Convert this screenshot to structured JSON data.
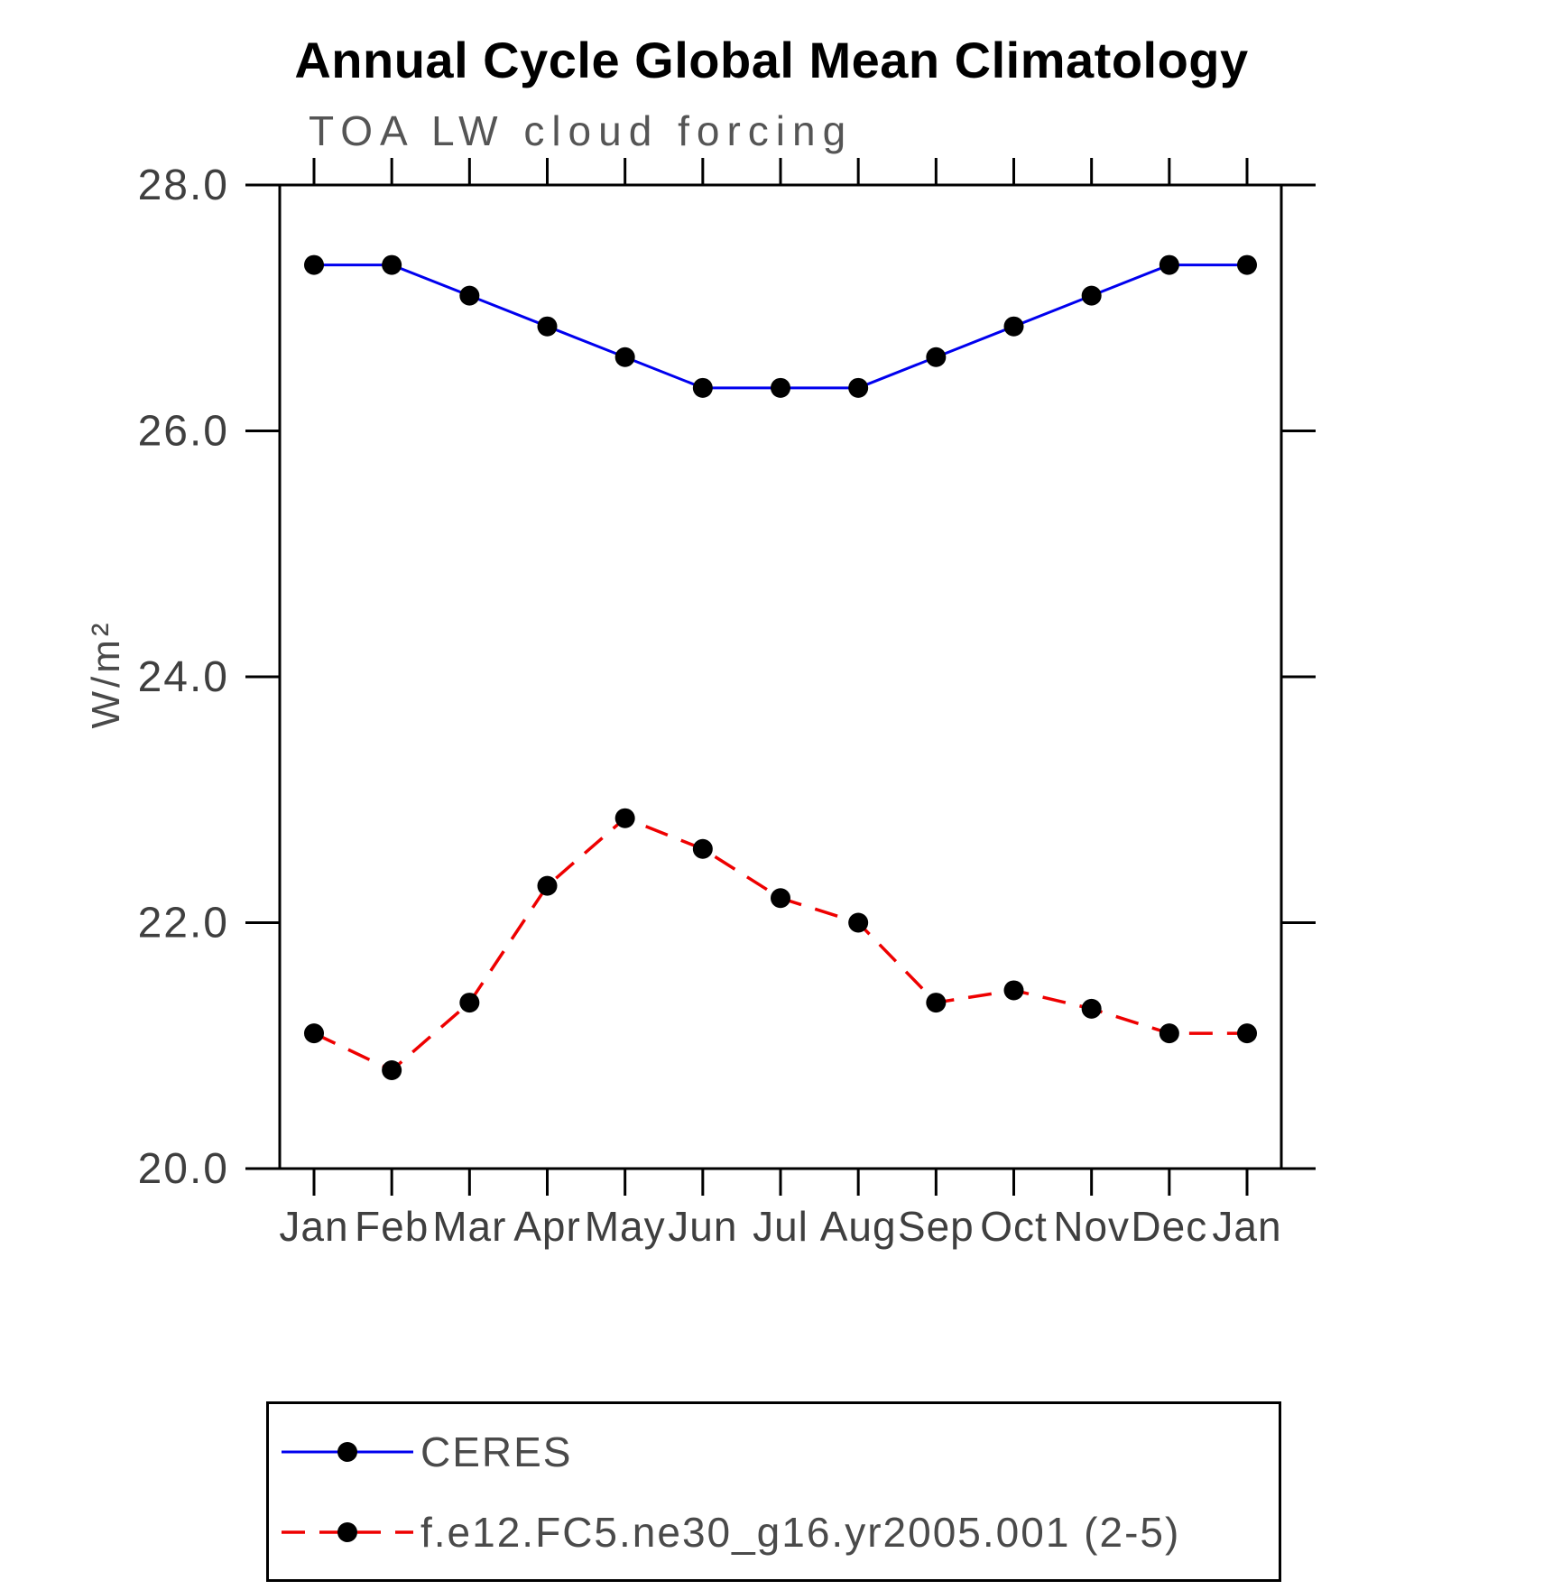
{
  "title": "Annual Cycle Global Mean Climatology",
  "chart_data": {
    "type": "line",
    "title": "Annual Cycle Global Mean Climatology",
    "subtitle": "TOA LW cloud forcing",
    "ylabel": "W/m²",
    "xlabel": "",
    "categories": [
      "Jan",
      "Feb",
      "Mar",
      "Apr",
      "May",
      "Jun",
      "Jul",
      "Aug",
      "Sep",
      "Oct",
      "Nov",
      "Dec",
      "Jan"
    ],
    "ylim": [
      20.0,
      28.0
    ],
    "yticks": [
      20.0,
      22.0,
      24.0,
      26.0,
      28.0
    ],
    "ytick_labels": [
      "20.0",
      "22.0",
      "24.0",
      "26.0",
      "28.0"
    ],
    "grid": false,
    "legend_position": "bottom",
    "marker_color": "#000000",
    "axis_color": "#000000",
    "tick_label_color": "#3f3f3f",
    "series": [
      {
        "name": "CERES",
        "color": "#0000ee",
        "style": "solid",
        "marker": "circle",
        "values": [
          27.35,
          27.35,
          27.1,
          26.85,
          26.6,
          26.35,
          26.35,
          26.35,
          26.6,
          26.85,
          27.1,
          27.35,
          27.35
        ]
      },
      {
        "name": "f.e12.FC5.ne30_g16.yr2005.001 (2-5)",
        "color": "#ee0000",
        "style": "dashed",
        "marker": "circle",
        "values": [
          21.1,
          20.8,
          21.35,
          22.3,
          22.85,
          22.6,
          22.2,
          22.0,
          21.35,
          21.45,
          21.3,
          21.1,
          21.1
        ]
      }
    ]
  }
}
